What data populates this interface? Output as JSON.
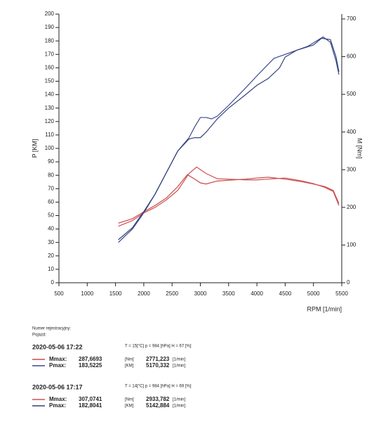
{
  "chart_data": {
    "type": "line",
    "ylabel": "P [KM]",
    "y2label": "M [Nm]",
    "xlabel": "RPM [1/min]",
    "xlim": [
      500,
      5500
    ],
    "xticks": [
      500,
      1000,
      1500,
      2000,
      2500,
      3000,
      3500,
      4000,
      4500,
      5000,
      5500
    ],
    "ylim": [
      0,
      200
    ],
    "yticks": [
      0,
      10,
      20,
      30,
      40,
      50,
      60,
      70,
      80,
      90,
      100,
      110,
      120,
      130,
      140,
      150,
      160,
      170,
      180,
      190,
      200
    ],
    "y2lim": [
      0,
      713
    ],
    "y2ticks": [
      0,
      100,
      200,
      300,
      400,
      500,
      600,
      700
    ],
    "series": [
      {
        "name": "Mmax:",
        "color": "#c94848",
        "axis": "y2",
        "x": [
          1550,
          1800,
          2000,
          2200,
          2400,
          2600,
          2771,
          2900,
          3000,
          3100,
          3300,
          3500,
          3800,
          4000,
          4200,
          4500,
          4800,
          5000,
          5200,
          5350,
          5450
        ],
        "values": [
          158,
          170,
          188,
          205,
          225,
          255,
          287,
          275,
          265,
          262,
          270,
          272,
          275,
          278,
          280,
          275,
          268,
          262,
          255,
          245,
          210
        ]
      },
      {
        "name": "Pmax:",
        "color": "#3a4a8c",
        "x": [
          1550,
          1800,
          2000,
          2200,
          2400,
          2600,
          2800,
          2900,
          3000,
          3100,
          3200,
          3300,
          3500,
          3800,
          4000,
          4300,
          4500,
          4700,
          4900,
          5170,
          5300,
          5400,
          5450
        ],
        "values": [
          30,
          40,
          52,
          66,
          82,
          98,
          108,
          116,
          123,
          123,
          122,
          124,
          132,
          145,
          154,
          167,
          170,
          173,
          176,
          183,
          179,
          165,
          155
        ]
      },
      {
        "name": "Mmax:",
        "color": "#d05050",
        "axis": "y2",
        "x": [
          1550,
          1800,
          2000,
          2200,
          2400,
          2600,
          2800,
          2934,
          3100,
          3300,
          3500,
          3800,
          4000,
          4200,
          4500,
          4800,
          5000,
          5200,
          5350,
          5450
        ],
        "values": [
          150,
          165,
          185,
          200,
          220,
          245,
          290,
          307,
          290,
          276,
          275,
          273,
          273,
          275,
          278,
          270,
          263,
          253,
          242,
          205
        ]
      },
      {
        "name": "Pmax:",
        "color": "#33407a",
        "x": [
          1550,
          1800,
          2000,
          2200,
          2400,
          2600,
          2800,
          2900,
          3000,
          3100,
          3300,
          3500,
          3800,
          4000,
          4200,
          4400,
          4500,
          4700,
          5000,
          5143,
          5300,
          5400,
          5450
        ],
        "values": [
          32,
          41,
          53,
          66,
          82,
          98,
          107,
          108,
          108,
          112,
          122,
          130,
          140,
          147,
          152,
          160,
          168,
          173,
          177,
          182,
          181,
          168,
          157
        ]
      }
    ]
  },
  "report": {
    "registration": "Numer rejestracyjny:",
    "vehicle": "Pojazd:",
    "runs": [
      {
        "date": "2020-05-06  17:22",
        "conditions": "T = 15[°C]  p = 984 [hPa]  H = 67 [%]",
        "rows": [
          {
            "value": "287,6693",
            "unit": "[Nm]",
            "rpm": "2771,223",
            "rpm_unit": "[1/min]"
          },
          {
            "value": "183,5225",
            "unit": "[KM]",
            "rpm": "5170,332",
            "rpm_unit": "[1/min]"
          }
        ]
      },
      {
        "date": "2020-05-06  17:17",
        "conditions": "T = 14[°C]  p = 984 [hPa]  H = 69 [%]",
        "rows": [
          {
            "value": "307,0741",
            "unit": "[Nm]",
            "rpm": "2933,782",
            "rpm_unit": "[1/min]"
          },
          {
            "value": "182,8041",
            "unit": "[KM]",
            "rpm": "5142,884",
            "rpm_unit": "[1/min]"
          }
        ]
      }
    ]
  }
}
